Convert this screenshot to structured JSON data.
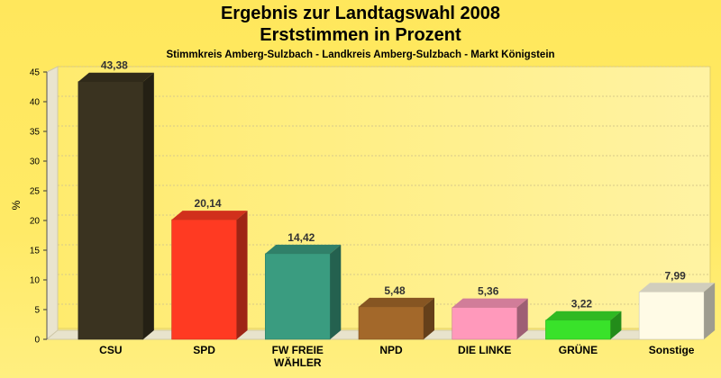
{
  "title": "Ergebnis zur Landtagswahl 2008",
  "subtitle": "Erststimmen in Prozent",
  "caption": "Stimmkreis Amberg-Sulzbach - Landkreis Amberg-Sulzbach - Markt Königstein",
  "chart_data": {
    "type": "bar",
    "title": "Ergebnis zur Landtagswahl 2008",
    "subtitle": "Erststimmen in Prozent",
    "xlabel": "",
    "ylabel": "%",
    "ylim": [
      0,
      45
    ],
    "yticks": [
      0,
      5,
      10,
      15,
      20,
      25,
      30,
      35,
      40,
      45
    ],
    "grid": true,
    "legend": "none",
    "categories": [
      "CSU",
      "SPD",
      "FW FREIE WÄHLER",
      "NPD",
      "DIE LINKE",
      "GRÜNE",
      "Sonstige"
    ],
    "category_lines": [
      [
        "CSU"
      ],
      [
        "SPD"
      ],
      [
        "FW FREIE",
        "WÄHLER"
      ],
      [
        "NPD"
      ],
      [
        "DIE LINKE"
      ],
      [
        "GRÜNE"
      ],
      [
        "Sonstige"
      ]
    ],
    "values": [
      43.38,
      20.14,
      14.42,
      5.48,
      5.36,
      3.22,
      7.99
    ],
    "value_labels": [
      "43,38",
      "20,14",
      "14,42",
      "5,48",
      "5,36",
      "3,22",
      "7,99"
    ],
    "colors": [
      "#3a3320",
      "#ff3a22",
      "#3a9c80",
      "#a3682a",
      "#ff99bb",
      "#39e22a",
      "#fffbe6"
    ]
  }
}
